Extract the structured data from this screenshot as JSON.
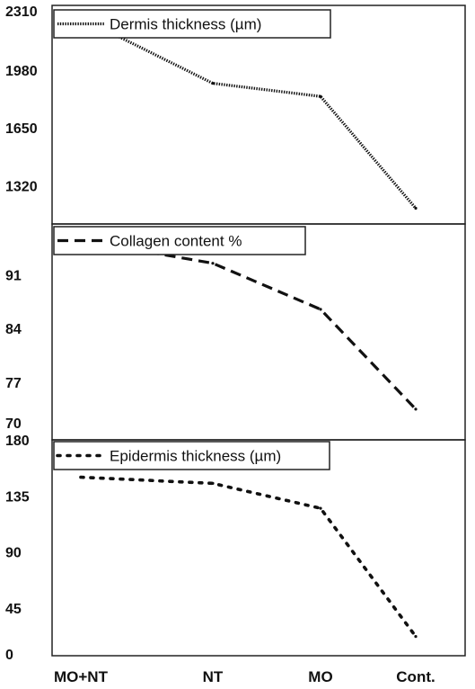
{
  "chart_data": {
    "type": "line",
    "categories": [
      "MO+NT",
      "NT",
      "MO",
      "Cont."
    ],
    "panels": [
      {
        "name": "dermis",
        "legend": "Dermis thickness (µm)",
        "line_style": "dense-dotted",
        "yticks": [
          1320,
          1650,
          1980,
          2310
        ],
        "ylim": [
          1100,
          2320
        ],
        "values": [
          2280,
          1905,
          1830,
          1190
        ]
      },
      {
        "name": "collagen",
        "legend": "Collagen content %",
        "line_style": "dashed",
        "yticks": [
          70,
          77,
          84,
          91
        ],
        "ylim": [
          69.5,
          97.5
        ],
        "values": [
          95.5,
          92.5,
          86.5,
          73.5
        ]
      },
      {
        "name": "epidermis",
        "legend": "Epidermis thickness (µm)",
        "line_style": "dotted",
        "yticks": [
          0,
          45,
          90,
          135,
          180
        ],
        "ylim": [
          -5,
          180
        ],
        "values": [
          150,
          145,
          125,
          22
        ]
      }
    ]
  }
}
